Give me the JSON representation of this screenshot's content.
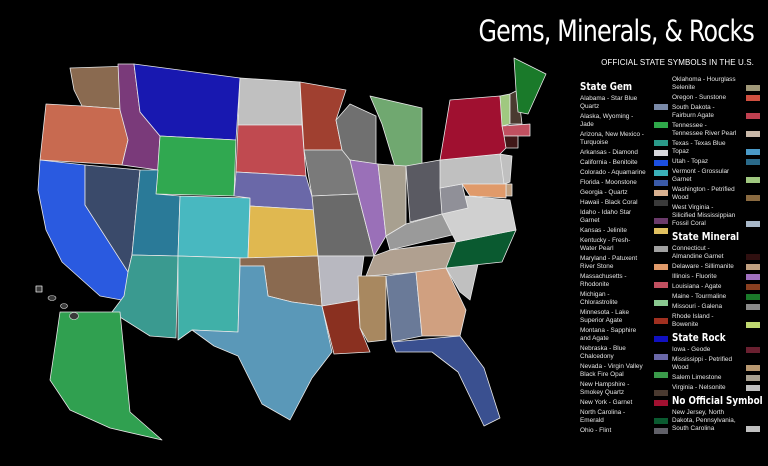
{
  "title": "Gems, Minerals, & Rocks",
  "subtitle": "OFFICIAL STATE SYMBOLS IN THE U.S.",
  "legend": {
    "state_gem": {
      "heading": "State Gem",
      "items": [
        {
          "label": "Alabama - Star Blue Quartz",
          "color": "#7a8aa8"
        },
        {
          "label": "Alaska, Wyoming - Jade",
          "color": "#2fa84a"
        },
        {
          "label": "Arizona, New Mexico - Turquoise",
          "color": "#2a9a8a"
        },
        {
          "label": "Arkansas - Diamond",
          "color": "#d8d8dc"
        },
        {
          "label": "California - Benitoite",
          "color": "#1c4fe0"
        },
        {
          "label": "Colorado - Aquamarine",
          "color": "#3ab0b8"
        },
        {
          "label": "Florida - Moonstone",
          "color": "#3a5aa8"
        },
        {
          "label": "Georgia - Quartz",
          "color": "#d8b090"
        },
        {
          "label": "Hawaii - Black Coral",
          "color": "#3a3a3a"
        },
        {
          "label": "Idaho - Idaho Star Garnet",
          "color": "#6a3a6a"
        },
        {
          "label": "Kansas - Jelinite",
          "color": "#e0c060"
        },
        {
          "label": "Kentucky - Fresh-Water Pearl",
          "color": "#a0a0a0"
        },
        {
          "label": "Maryland - Patuxent River Stone",
          "color": "#e09a6a"
        },
        {
          "label": "Massachusetts - Rhodonite",
          "color": "#c05060"
        },
        {
          "label": "Michigan - Chlorastrolite",
          "color": "#8ac890"
        },
        {
          "label": "Minnesota - Lake Superior Agate",
          "color": "#a03020"
        },
        {
          "label": "Montana - Sapphire and Agate",
          "color": "#1010c0"
        },
        {
          "label": "Nebraska - Blue Chalcedony",
          "color": "#6a68a8"
        },
        {
          "label": "Nevada - Virgin Valley Black Fire Opal",
          "color": "#3a9a4a"
        },
        {
          "label": "New Hampshire - Smokey Quartz",
          "color": "#4a3a30"
        },
        {
          "label": "New York - Garnet",
          "color": "#a01030"
        },
        {
          "label": "North Carolina - Emerald",
          "color": "#0a5a30"
        },
        {
          "label": "Ohio - Flint",
          "color": "#606068"
        },
        {
          "label": "Oklahoma - Hourglass Selenite",
          "color": "#a09878"
        },
        {
          "label": "Oregon - Sunstone",
          "color": "#d05040"
        },
        {
          "label": "South Dakota - Fairburn Agate",
          "color": "#c04050"
        },
        {
          "label": "Tennessee - Tennessee River Pearl",
          "color": "#c8b8a8"
        },
        {
          "label": "Texas - Texas Blue Topaz",
          "color": "#4a9ac8"
        },
        {
          "label": "Utah - Topaz",
          "color": "#2a6a8a"
        },
        {
          "label": "Vermont - Grossular Garnet",
          "color": "#a0c880"
        },
        {
          "label": "Washington - Petrified Wood",
          "color": "#8a6a40"
        },
        {
          "label": "West Virginia - Silicified Mississippian Fossil Coral",
          "color": "#a8b8c8"
        }
      ]
    },
    "state_mineral": {
      "heading": "State Mineral",
      "items": [
        {
          "label": "Connecticut - Almandine Garnet",
          "color": "#301010"
        },
        {
          "label": "Delaware - Sillimanite",
          "color": "#c0a080"
        },
        {
          "label": "Illinois - Fluorite",
          "color": "#a070c0"
        },
        {
          "label": "Louisiana - Agate",
          "color": "#8a4020"
        },
        {
          "label": "Maine - Tourmaline",
          "color": "#1a7a2a"
        },
        {
          "label": "Missouri - Galena",
          "color": "#8a8a8a"
        },
        {
          "label": "Rhode Island - Bowenite",
          "color": "#c0d870"
        }
      ]
    },
    "state_rock": {
      "heading": "State Rock",
      "items": [
        {
          "label": "Iowa - Geode",
          "color": "#6a2030"
        },
        {
          "label": "Mississippi - Petrified Wood",
          "color": "#b89870"
        },
        {
          "label": "Salem Limestone",
          "color": "#a8a090"
        },
        {
          "label": "Virginia - Nelsonite",
          "color": "#c0c0c0"
        }
      ]
    },
    "no_symbol": {
      "heading": "No Official Symbol",
      "items": [
        {
          "label": "New Jersey, North Dakota, Pennsylvania, South Carolina",
          "color": "#c0c0c0"
        }
      ]
    }
  },
  "states": [
    {
      "name": "Washington",
      "color": "#8a6a50"
    },
    {
      "name": "Oregon",
      "color": "#c86a50"
    },
    {
      "name": "California",
      "color": "#2a5ae0"
    },
    {
      "name": "Nevada",
      "color": "#3a4a6a"
    },
    {
      "name": "Idaho",
      "color": "#7a3a7a"
    },
    {
      "name": "Montana",
      "color": "#1818b0"
    },
    {
      "name": "Wyoming",
      "color": "#30a850"
    },
    {
      "name": "Utah",
      "color": "#2a7a98"
    },
    {
      "name": "Colorado",
      "color": "#48b8c0"
    },
    {
      "name": "Arizona",
      "color": "#3a9a90"
    },
    {
      "name": "New Mexico",
      "color": "#40b0a8"
    },
    {
      "name": "North Dakota",
      "color": "#c0c0c0"
    },
    {
      "name": "South Dakota",
      "color": "#c04a50"
    },
    {
      "name": "Nebraska",
      "color": "#6a68a8"
    },
    {
      "name": "Kansas",
      "color": "#e0b850"
    },
    {
      "name": "Oklahoma",
      "color": "#8a6a50"
    },
    {
      "name": "Texas",
      "color": "#5a98b8"
    },
    {
      "name": "Minnesota",
      "color": "#a04030"
    },
    {
      "name": "Iowa",
      "color": "#7a7a7a"
    },
    {
      "name": "Missouri",
      "color": "#6a6a6a"
    },
    {
      "name": "Arkansas",
      "color": "#b8b8c0"
    },
    {
      "name": "Louisiana",
      "color": "#8a3020"
    },
    {
      "name": "Wisconsin",
      "color": "#707070"
    },
    {
      "name": "Illinois",
      "color": "#9a70b8"
    },
    {
      "name": "Michigan",
      "color": "#70a870"
    },
    {
      "name": "Indiana",
      "color": "#a8a090"
    },
    {
      "name": "Ohio",
      "color": "#5a5a62"
    },
    {
      "name": "Kentucky",
      "color": "#9a9a9a"
    },
    {
      "name": "Tennessee",
      "color": "#b0a090"
    },
    {
      "name": "Mississippi",
      "color": "#a88860"
    },
    {
      "name": "Alabama",
      "color": "#6a7a98"
    },
    {
      "name": "Georgia",
      "color": "#d0a080"
    },
    {
      "name": "Florida",
      "color": "#3a5090"
    },
    {
      "name": "South Carolina",
      "color": "#c0c0c0"
    },
    {
      "name": "North Carolina",
      "color": "#0a5a30"
    },
    {
      "name": "Virginia",
      "color": "#d0d0d0"
    },
    {
      "name": "West Virginia",
      "color": "#909098"
    },
    {
      "name": "Pennsylvania",
      "color": "#c0c0c0"
    },
    {
      "name": "New York",
      "color": "#a01030"
    },
    {
      "name": "Vermont",
      "color": "#a0c880"
    },
    {
      "name": "New Hampshire",
      "color": "#4a3a30"
    },
    {
      "name": "Maine",
      "color": "#1a7a2a"
    },
    {
      "name": "Massachusetts",
      "color": "#c05060"
    },
    {
      "name": "Connecticut",
      "color": "#401818"
    },
    {
      "name": "New Jersey",
      "color": "#c0c0c0"
    },
    {
      "name": "Delaware",
      "color": "#c0a080"
    },
    {
      "name": "Maryland",
      "color": "#e09a6a"
    },
    {
      "name": "Alaska",
      "color": "#30a050"
    },
    {
      "name": "Hawaii",
      "color": "#3a3a3a"
    }
  ]
}
